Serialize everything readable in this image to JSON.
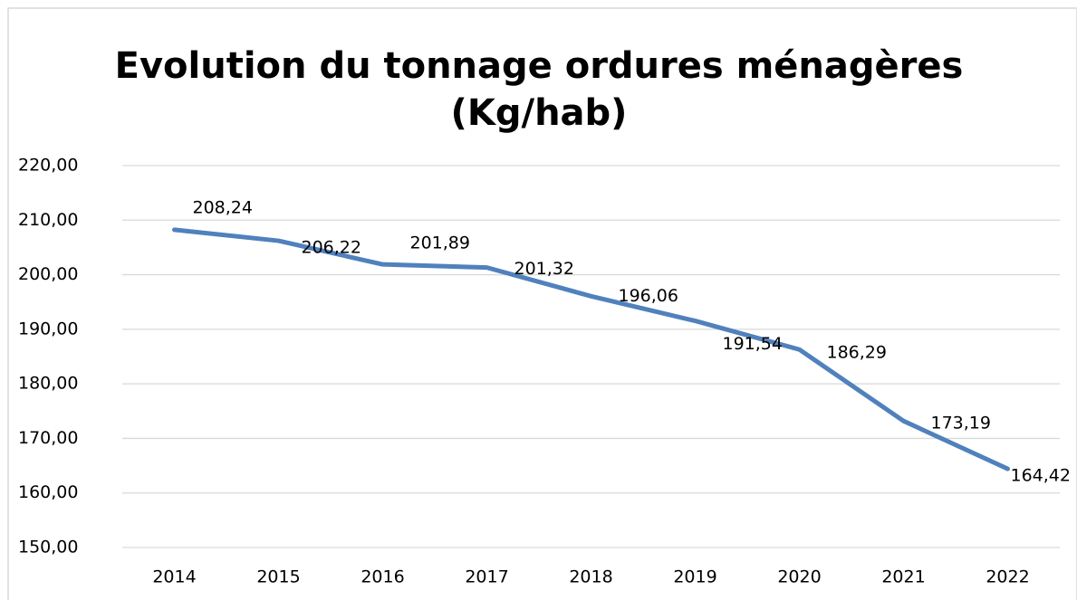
{
  "chart_data": {
    "type": "line",
    "title": [
      "Evolution du tonnage ordures ménagères",
      "(Kg/hab)"
    ],
    "categories": [
      "2014",
      "2015",
      "2016",
      "2017",
      "2018",
      "2019",
      "2020",
      "2021",
      "2022"
    ],
    "series": [
      {
        "name": null,
        "color": "#5081bd",
        "values": [
          208.24,
          206.22,
          201.89,
          201.32,
          196.06,
          191.54,
          186.29,
          173.19,
          164.42
        ],
        "value_labels": [
          "208,24",
          "206,22",
          "201,89",
          "201,32",
          "196,06",
          "191,54",
          "186,29",
          "173,19",
          "164,42"
        ]
      }
    ],
    "ylim": [
      150,
      220
    ],
    "yticks": [
      {
        "value": 150,
        "label": "150,00"
      },
      {
        "value": 160,
        "label": "160,00"
      },
      {
        "value": 170,
        "label": "170,00"
      },
      {
        "value": 180,
        "label": "180,00"
      },
      {
        "value": 190,
        "label": "190,00"
      },
      {
        "value": 200,
        "label": "200,00"
      },
      {
        "value": 210,
        "label": "210,00"
      },
      {
        "value": 220,
        "label": "220,00"
      }
    ],
    "grid": true
  }
}
